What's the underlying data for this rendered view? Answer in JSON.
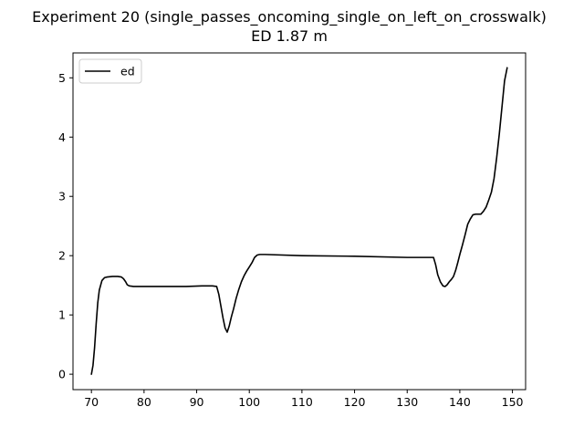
{
  "chart_data": {
    "type": "line",
    "title": "Experiment 20 (single_passes_oncoming_single_on_left_on_crosswalk)",
    "subtitle": "ED 1.87 m",
    "xlabel": "",
    "ylabel": "",
    "xlim": [
      66.5,
      152.5
    ],
    "ylim": [
      -0.26,
      5.42
    ],
    "xticks": [
      70,
      80,
      90,
      100,
      110,
      120,
      130,
      140,
      150
    ],
    "xtick_labels": [
      "70",
      "80",
      "90",
      "100",
      "110",
      "120",
      "130",
      "140",
      "150"
    ],
    "yticks": [
      0,
      1,
      2,
      3,
      4,
      5
    ],
    "ytick_labels": [
      "0",
      "1",
      "2",
      "3",
      "4",
      "5"
    ],
    "grid": false,
    "legend_position": "top-left",
    "series": [
      {
        "name": "ed",
        "color": "#000000",
        "x": [
          70.0,
          70.3,
          70.6,
          70.9,
          71.2,
          71.5,
          72.0,
          72.5,
          73.0,
          74.0,
          75.0,
          75.7,
          76.1,
          76.5,
          76.8,
          77.2,
          78.0,
          80.0,
          84.0,
          88.0,
          91.0,
          93.0,
          93.8,
          94.2,
          94.6,
          95.0,
          95.4,
          95.8,
          96.2,
          96.6,
          97.0,
          97.5,
          98.0,
          98.5,
          99.0,
          99.5,
          100.0,
          100.5,
          101.0,
          101.5,
          102.0,
          103.0,
          110.0,
          120.0,
          130.0,
          135.0,
          135.4,
          135.8,
          136.3,
          136.8,
          137.2,
          137.6,
          138.0,
          138.4,
          138.8,
          139.2,
          139.6,
          140.0,
          140.5,
          141.0,
          141.5,
          142.0,
          142.5,
          143.0,
          144.0,
          144.5,
          145.0,
          145.5,
          146.0,
          146.5,
          147.0,
          147.5,
          148.0,
          148.5,
          149.0
        ],
        "y": [
          0.0,
          0.15,
          0.45,
          0.85,
          1.2,
          1.42,
          1.58,
          1.63,
          1.64,
          1.65,
          1.65,
          1.64,
          1.61,
          1.56,
          1.51,
          1.49,
          1.48,
          1.48,
          1.48,
          1.48,
          1.49,
          1.49,
          1.48,
          1.35,
          1.15,
          0.95,
          0.78,
          0.71,
          0.82,
          0.97,
          1.1,
          1.28,
          1.43,
          1.56,
          1.66,
          1.74,
          1.81,
          1.88,
          1.97,
          2.01,
          2.02,
          2.02,
          2.0,
          1.99,
          1.97,
          1.97,
          1.85,
          1.68,
          1.56,
          1.49,
          1.48,
          1.51,
          1.56,
          1.6,
          1.65,
          1.75,
          1.88,
          2.02,
          2.18,
          2.35,
          2.53,
          2.62,
          2.69,
          2.7,
          2.7,
          2.75,
          2.82,
          2.94,
          3.07,
          3.3,
          3.65,
          4.05,
          4.5,
          4.95,
          5.17
        ]
      }
    ]
  }
}
